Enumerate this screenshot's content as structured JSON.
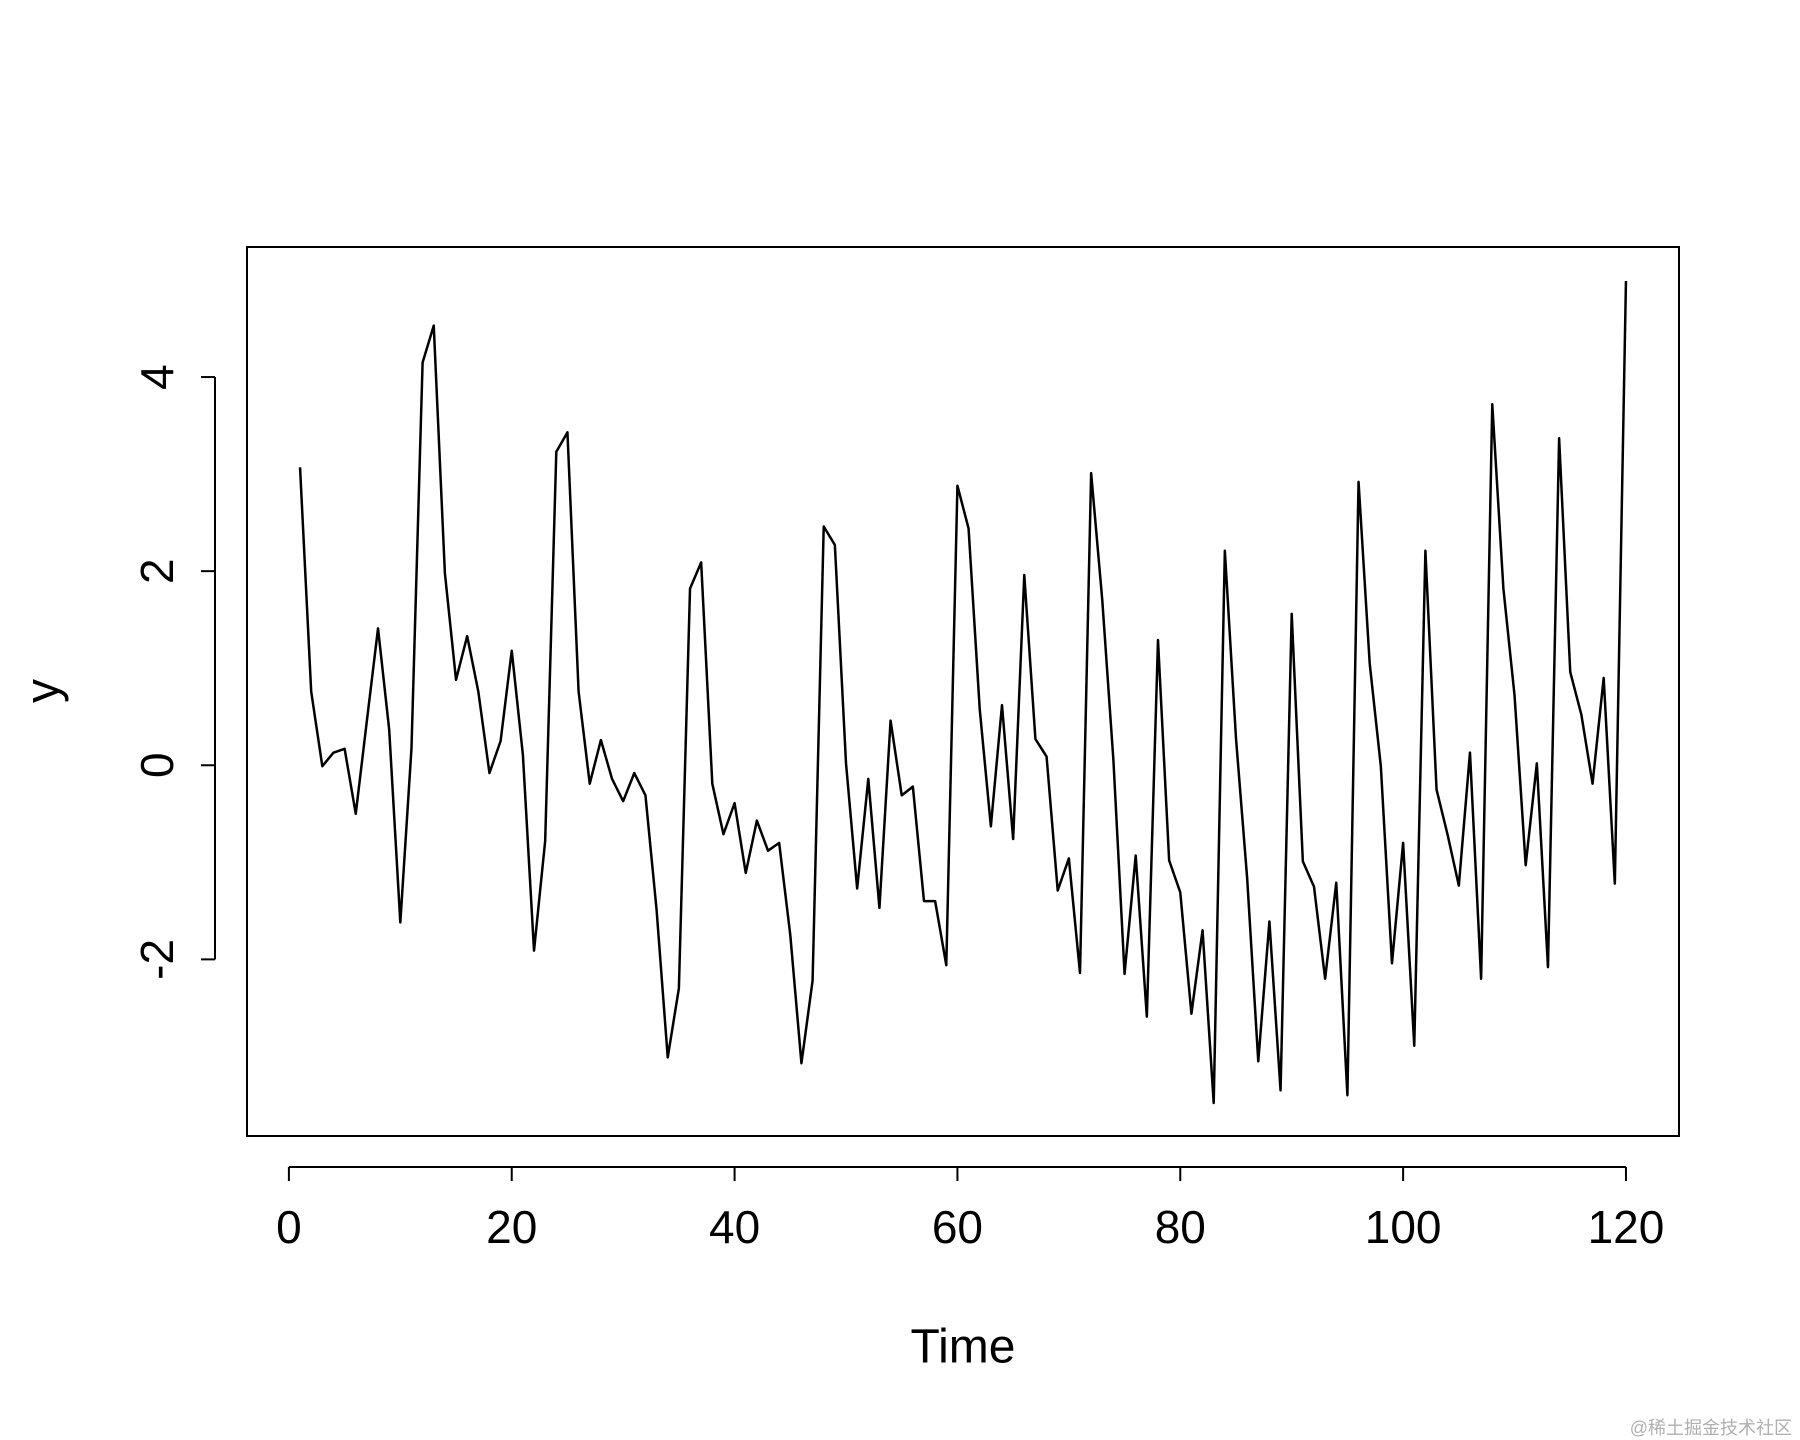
{
  "chart_data": {
    "type": "line",
    "x_label": "Time",
    "y_label": "y",
    "x": [
      1,
      2,
      3,
      4,
      5,
      6,
      7,
      8,
      9,
      10,
      11,
      12,
      13,
      14,
      15,
      16,
      17,
      18,
      19,
      20,
      21,
      22,
      23,
      24,
      25,
      26,
      27,
      28,
      29,
      30,
      31,
      32,
      33,
      34,
      35,
      36,
      37,
      38,
      39,
      40,
      41,
      42,
      43,
      44,
      45,
      46,
      47,
      48,
      49,
      50,
      51,
      52,
      53,
      54,
      55,
      56,
      57,
      58,
      59,
      60,
      61,
      62,
      63,
      64,
      65,
      66,
      67,
      68,
      69,
      70,
      71,
      72,
      73,
      74,
      75,
      76,
      77,
      78,
      79,
      80,
      81,
      82,
      83,
      84,
      85,
      86,
      87,
      88,
      89,
      90,
      91,
      92,
      93,
      94,
      95,
      96,
      97,
      98,
      99,
      100,
      101,
      102,
      103,
      104,
      105,
      106,
      107,
      108,
      109,
      110,
      111,
      112,
      113,
      114,
      115,
      116,
      117,
      118,
      119,
      120
    ],
    "values": [
      3.07,
      0.76,
      -0.01,
      0.13,
      0.17,
      -0.5,
      0.46,
      1.41,
      0.37,
      -1.62,
      0.17,
      4.15,
      4.53,
      1.98,
      0.88,
      1.33,
      0.76,
      -0.08,
      0.25,
      1.18,
      0.11,
      -1.91,
      -0.78,
      3.23,
      3.43,
      0.76,
      -0.19,
      0.26,
      -0.14,
      -0.37,
      -0.08,
      -0.31,
      -1.49,
      -3.01,
      -2.3,
      1.82,
      2.09,
      -0.19,
      -0.71,
      -0.39,
      -1.11,
      -0.57,
      -0.88,
      -0.8,
      -1.75,
      -3.07,
      -2.22,
      2.46,
      2.27,
      0.02,
      -1.27,
      -0.14,
      -1.47,
      0.46,
      -0.31,
      -0.22,
      -1.4,
      -1.4,
      -2.06,
      2.88,
      2.44,
      0.58,
      -0.63,
      0.62,
      -0.76,
      1.96,
      0.27,
      0.09,
      -1.29,
      -0.96,
      -2.14,
      3.01,
      1.7,
      0.05,
      -2.15,
      -0.93,
      -2.59,
      1.29,
      -0.98,
      -1.31,
      -2.56,
      -1.7,
      -3.48,
      2.21,
      0.28,
      -1.16,
      -3.05,
      -1.61,
      -3.35,
      1.56,
      -0.99,
      -1.25,
      -2.2,
      -1.21,
      -3.4,
      2.92,
      1.05,
      -0.01,
      -2.04,
      -0.8,
      -2.89,
      2.21,
      -0.25,
      -0.72,
      -1.24,
      0.13,
      -2.2,
      3.72,
      1.82,
      0.72,
      -1.03,
      0.02,
      -2.08,
      3.37,
      0.96,
      0.52,
      -0.19,
      0.9,
      -1.22,
      4.99
    ],
    "color": "#000000",
    "xlim": [
      -3.76,
      124.76
    ],
    "ylim": [
      -3.82,
      5.34
    ],
    "xticks": [
      0,
      20,
      40,
      60,
      80,
      100,
      120
    ],
    "yticks": [
      -2,
      0,
      2,
      4
    ],
    "watermark": "@稀土掘金技术社区"
  }
}
